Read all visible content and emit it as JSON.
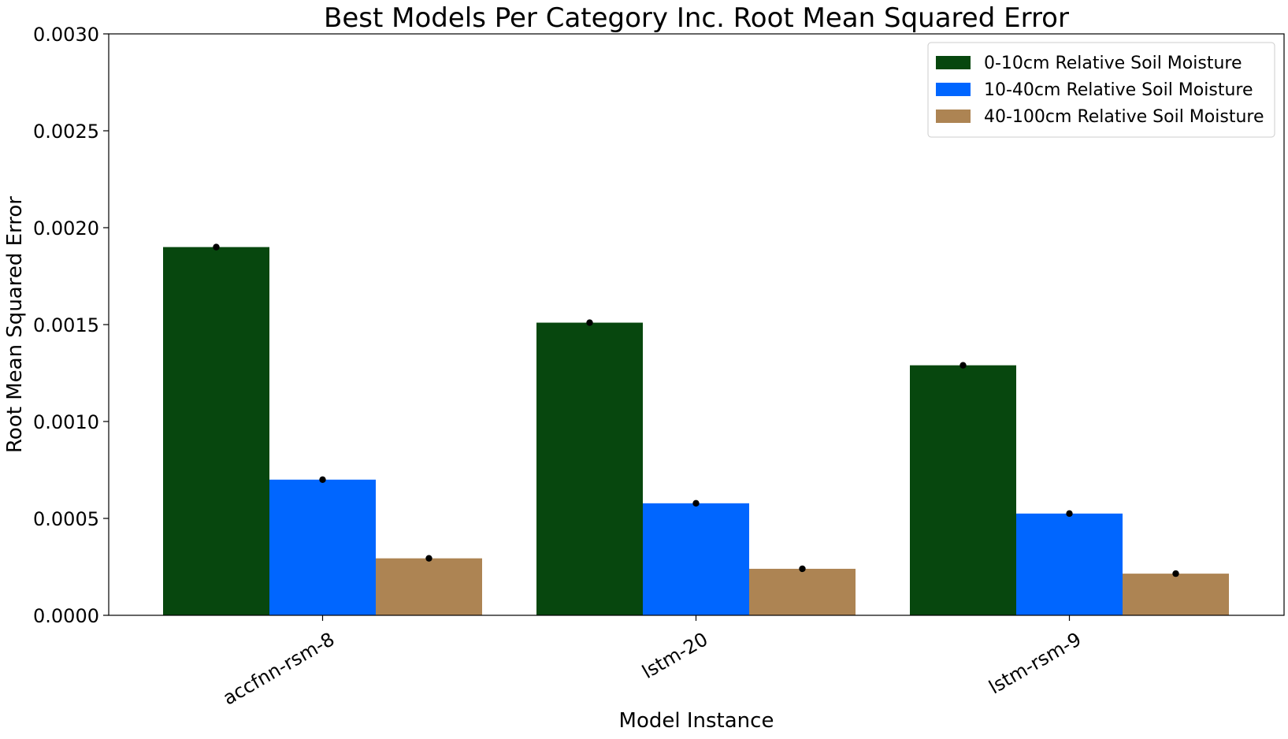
{
  "chart_data": {
    "type": "bar",
    "title": "Best Models Per Category Inc. Root Mean Squared Error",
    "xlabel": "Model Instance",
    "ylabel": "Root Mean Squared Error",
    "categories": [
      "accfnn-rsm-8",
      "lstm-20",
      "lstm-rsm-9"
    ],
    "ylim": [
      0,
      0.003
    ],
    "yticks": [
      "0.0000",
      "0.0005",
      "0.0010",
      "0.0015",
      "0.0020",
      "0.0025",
      "0.0030"
    ],
    "ytick_values": [
      0,
      0.0005,
      0.001,
      0.0015,
      0.002,
      0.0025,
      0.003
    ],
    "grid": false,
    "legend_position": "top-right",
    "point_marker_color": "#000000",
    "series": [
      {
        "name": "0-10cm Relative Soil Moisture",
        "color": "#07470e",
        "values": [
          0.0019,
          0.00151,
          0.00129
        ]
      },
      {
        "name": "10-40cm Relative Soil Moisture",
        "color": "#0066ff",
        "values": [
          0.0007,
          0.000578,
          0.000525
        ]
      },
      {
        "name": "40-100cm Relative Soil Moisture",
        "color": "#ad8453",
        "values": [
          0.000294,
          0.00024,
          0.000215
        ]
      }
    ]
  }
}
